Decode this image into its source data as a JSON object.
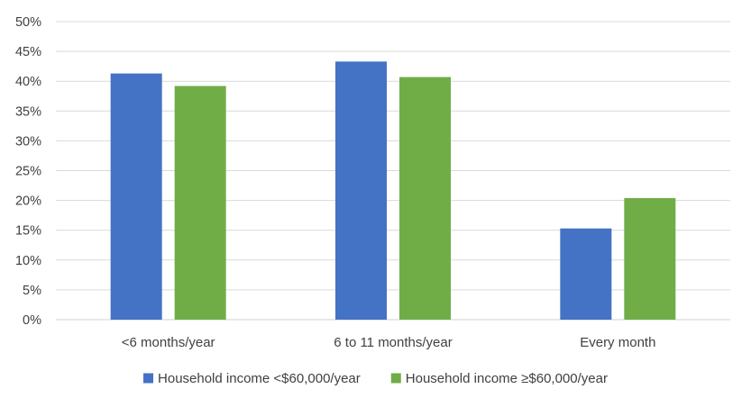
{
  "chart_data": {
    "type": "bar",
    "categories": [
      "<6 months/year",
      "6 to 11 months/year",
      "Every month"
    ],
    "series": [
      {
        "name": "Household income <$60,000/year",
        "values": [
          41.3,
          43.3,
          15.3
        ],
        "color": "#4472C4"
      },
      {
        "name": "Household income ≥$60,000/year",
        "values": [
          39.2,
          40.7,
          20.4
        ],
        "color": "#70AD47"
      }
    ],
    "yticks": [
      "0%",
      "5%",
      "10%",
      "15%",
      "20%",
      "25%",
      "30%",
      "35%",
      "40%",
      "45%",
      "50%"
    ],
    "ylim": [
      0,
      50
    ],
    "grid": true,
    "legend_position": "bottom",
    "gridline_color": "#D9D9D9"
  }
}
